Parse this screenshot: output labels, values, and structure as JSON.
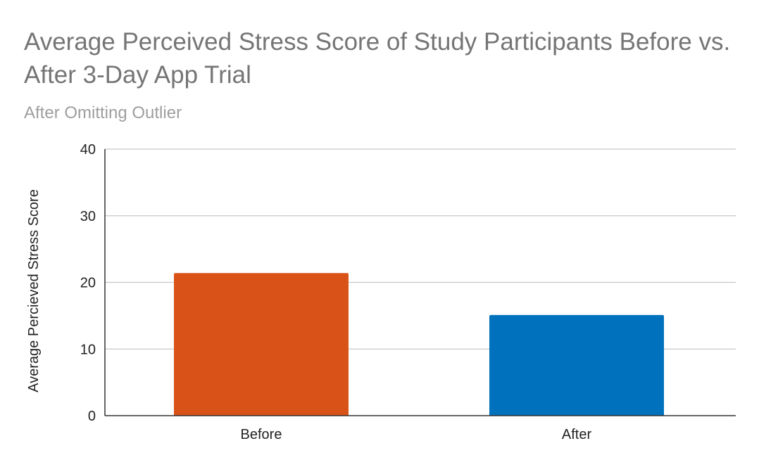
{
  "chart_data": {
    "type": "bar",
    "title": "Average Perceived Stress Score of Study Participants Before vs. After 3-Day App Trial",
    "subtitle": "After Omitting Outlier",
    "xlabel": "",
    "ylabel": "Average Percieved Stress Score",
    "categories": [
      "Before",
      "After"
    ],
    "values": [
      21.4,
      15.1
    ],
    "bar_colors": [
      "#d95319",
      "#0072bd"
    ],
    "ylim": [
      0,
      40
    ],
    "yticks": [
      0,
      10,
      20,
      30,
      40
    ],
    "grid": true,
    "legend": "none"
  }
}
